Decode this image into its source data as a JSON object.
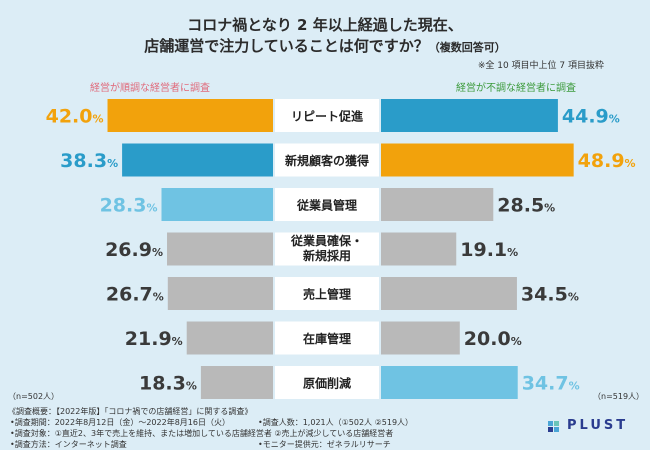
{
  "header": {
    "title_line1": "コロナ禍となり 2 年以上経過した現在、",
    "title_line2": "店舗運営で注力していることは何ですか？",
    "title_suffix": "（複数回答可）",
    "note": "※全 10 項目中上位 7 項目抜粋"
  },
  "groups": {
    "left": "経営が順調な経営者に調査",
    "right": "経営が不調な経営者に調査",
    "left_n": "（n=502人）",
    "right_n": "（n=519人）"
  },
  "chart_data": {
    "type": "bar",
    "orientation": "horizontal-diverging",
    "categories": [
      "リピート促進",
      "新規顧客の獲得",
      "従業員管理",
      "従業員確保・新規採用",
      "売上管理",
      "在庫管理",
      "原価削減"
    ],
    "category_lines": [
      [
        "リピート促進"
      ],
      [
        "新規顧客の獲得"
      ],
      [
        "従業員管理"
      ],
      [
        "従業員確保・",
        "新規採用"
      ],
      [
        "売上管理"
      ],
      [
        "在庫管理"
      ],
      [
        "原価削減"
      ]
    ],
    "series": [
      {
        "name": "経営が順調な経営者に調査",
        "values": [
          42.0,
          38.3,
          28.3,
          26.9,
          26.7,
          21.9,
          18.3
        ],
        "unit": "%"
      },
      {
        "name": "経営が不調な経営者に調査",
        "values": [
          44.9,
          48.9,
          28.5,
          19.1,
          34.5,
          20.0,
          34.7
        ],
        "unit": "%"
      }
    ],
    "highlight": {
      "left": [
        "orange",
        "blue",
        "lightblue",
        "gray",
        "gray",
        "gray",
        "gray"
      ],
      "right": [
        "blue",
        "orange",
        "gray",
        "gray",
        "gray",
        "gray",
        "lightblue"
      ]
    },
    "xlim": [
      0,
      50
    ]
  },
  "colors": {
    "orange": "#f2a20c",
    "blue": "#2a9cc9",
    "lightblue": "#6fc3e3",
    "gray": "#b9b9b9",
    "label_gray": "#3a3a3a",
    "category_bg": "#ffffff"
  },
  "footer": {
    "line1": "《調査概要：【2022年版】「コロナ禍での店舗経営」に関する調査》",
    "line2a": "•調査期間：2022年8月12日（金）〜2022年8月16日（火）",
    "line2b": "•調査人数：1,021人（①502人 ②519人）",
    "line3": "•調査対象：①直近2、3年で売上を維持、または増加している店舗経営者 ②売上が減少している店舗経営者",
    "line4a": "•調査方法：インターネット調査",
    "line4b": "•モニター提供元：ゼネラルリサーチ",
    "logo": "PLUST"
  }
}
